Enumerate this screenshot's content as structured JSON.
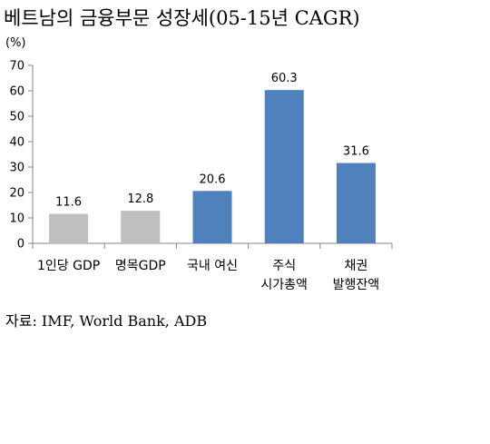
{
  "chart_data": {
    "type": "bar",
    "title": "베트남의 금융부문 성장세(05-15년 CAGR)",
    "ylabel": "(%)",
    "xlabel": "",
    "ylim": [
      0,
      70
    ],
    "yticks": [
      0,
      10,
      20,
      30,
      40,
      50,
      60,
      70
    ],
    "grid": false,
    "legend": "none",
    "categories": [
      [
        "1인당 GDP"
      ],
      [
        "명목GDP"
      ],
      [
        "국내 여신"
      ],
      [
        "주식",
        "시가총액"
      ],
      [
        "채권",
        "발행잔액"
      ]
    ],
    "values": [
      11.6,
      12.8,
      20.6,
      60.3,
      31.6
    ],
    "value_labels": [
      "11.6",
      "12.8",
      "20.6",
      "60.3",
      "31.6"
    ],
    "colors": [
      "#bfbfbf",
      "#bfbfbf",
      "#4f81bd",
      "#4f81bd",
      "#4f81bd"
    ]
  },
  "source": "자료: IMF, World Bank, ADB"
}
